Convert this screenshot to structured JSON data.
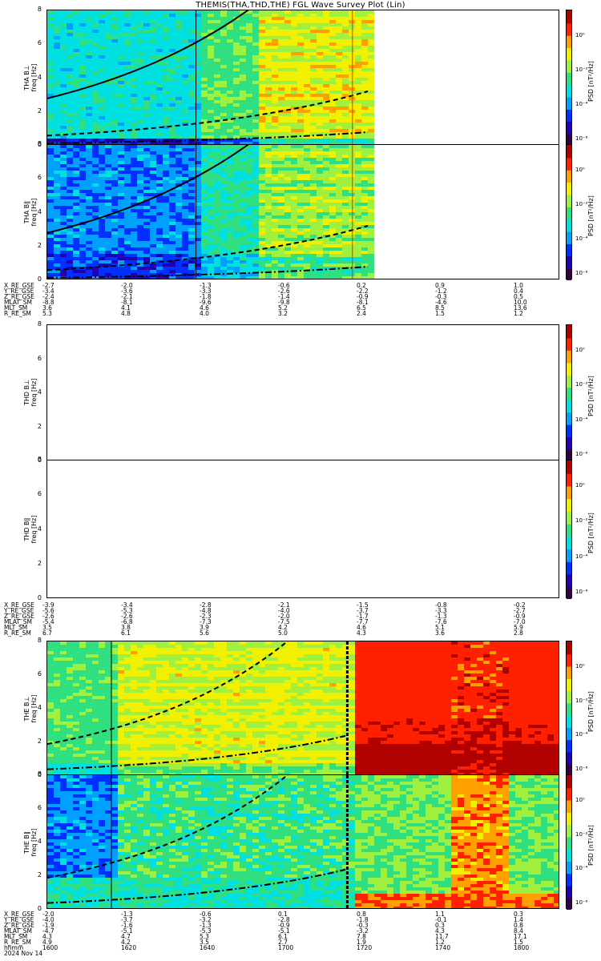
{
  "title": "THEMIS(THA,THD,THE) FGL Wave Survey Plot (Lin)",
  "colors": {
    "rainbow": [
      "#300040",
      "#2000b0",
      "#0030ff",
      "#00a0ff",
      "#00e0e0",
      "#30e080",
      "#a0f040",
      "#f0f000",
      "#ffa000",
      "#ff2000",
      "#b00000"
    ]
  },
  "panels": [
    {
      "id": "tha-bl",
      "label1": "THA B⊥",
      "label2": "freq [Hz]",
      "yticks": [
        "0",
        "2",
        "4",
        "6",
        "8"
      ],
      "cbar_label": "PSD [nT²/Hz]",
      "cbar_ticks": [
        "10⁰",
        "10⁻²",
        "10⁻⁴",
        "10⁻⁶"
      ]
    },
    {
      "id": "tha-bll",
      "label1": "THA B∥",
      "label2": "freq [Hz]",
      "yticks": [
        "0",
        "2",
        "4",
        "6",
        "8"
      ],
      "cbar_label": "PSD [nT²/Hz]",
      "cbar_ticks": [
        "10⁰",
        "10⁻²",
        "10⁻⁴",
        "10⁻⁶"
      ]
    },
    {
      "id": "thd-bl",
      "label1": "THD B⊥",
      "label2": "freq [Hz]",
      "yticks": [
        "0",
        "2",
        "4",
        "6",
        "8"
      ],
      "cbar_label": "PSD [nT²/Hz]",
      "cbar_ticks": [
        "10⁰",
        "10⁻²",
        "10⁻⁴",
        "10⁻⁶"
      ]
    },
    {
      "id": "thd-bll",
      "label1": "THD B∥",
      "label2": "freq [Hz]",
      "yticks": [
        "0",
        "2",
        "4",
        "6",
        "8"
      ],
      "cbar_label": "PSD [nT²/Hz]",
      "cbar_ticks": [
        "10⁰",
        "10⁻²",
        "10⁻⁴",
        "10⁻⁶"
      ]
    },
    {
      "id": "the-bl",
      "label1": "THE B⊥",
      "label2": "freq [Hz]",
      "yticks": [
        "0",
        "2",
        "4",
        "6",
        "8"
      ],
      "cbar_label": "PSD [nT²/Hz]",
      "cbar_ticks": [
        "10⁰",
        "10⁻²",
        "10⁻⁴",
        "10⁻⁶"
      ]
    },
    {
      "id": "the-bll",
      "label1": "THE B∥",
      "label2": "freq [Hz]",
      "yticks": [
        "0",
        "2",
        "4",
        "6",
        "8"
      ],
      "cbar_label": "PSD [nT²/Hz]",
      "cbar_ticks": [
        "10⁰",
        "10⁻²",
        "10⁻⁴",
        "10⁻⁶"
      ]
    }
  ],
  "ephem": [
    {
      "rows": [
        {
          "name": "X_RE_GSE",
          "vals": [
            "-2.7",
            "-2.0",
            "-1.3",
            "-0.6",
            "0.2",
            "0.9",
            "1.0"
          ]
        },
        {
          "name": "Y_RE_GSE",
          "vals": [
            "-3.4",
            "-3.6",
            "-3.3",
            "-2.6",
            "-2.2",
            "-1.2",
            "0.4"
          ]
        },
        {
          "name": "Z_RE_GSE",
          "vals": [
            "-2.4",
            "-2.1",
            "-1.8",
            "-1.4",
            "-0.9",
            "-0.3",
            "0.5"
          ]
        },
        {
          "name": "MLAT_SM",
          "vals": [
            "-8.8",
            "-8.1",
            "-9.6",
            "-9.8",
            "-8.1",
            "-4.6",
            "10.0"
          ]
        },
        {
          "name": "MLT_SM",
          "vals": [
            "3.6",
            "4.1",
            "4.6",
            "5.2",
            "6.5",
            "8.5",
            "13.6"
          ]
        },
        {
          "name": "R_RE_SM",
          "vals": [
            "5.3",
            "4.8",
            "4.0",
            "3.2",
            "2.4",
            "1.5",
            "1.2"
          ]
        }
      ]
    },
    {
      "rows": [
        {
          "name": "X_RE_GSE",
          "vals": [
            "-3.9",
            "-3.4",
            "-2.8",
            "-2.1",
            "-1.5",
            "-0.8",
            "-0.2"
          ]
        },
        {
          "name": "Y_RE_GSE",
          "vals": [
            "-5.6",
            "-5.3",
            "-4.8",
            "-4.0",
            "-3.7",
            "-3.3",
            "-2.7"
          ]
        },
        {
          "name": "Z_RE_GSE",
          "vals": [
            "-2.6",
            "-2.6",
            "-2.3",
            "-2.0",
            "-1.7",
            "-1.3",
            "-0.9"
          ]
        },
        {
          "name": "MLAT_SM",
          "vals": [
            "-5.4",
            "-6.8",
            "-7.3",
            "-7.5",
            "-7.7",
            "-7.6",
            "-7.0"
          ]
        },
        {
          "name": "MLT_SM",
          "vals": [
            "3.5",
            "3.8",
            "3.9",
            "4.2",
            "4.6",
            "5.1",
            "5.9"
          ]
        },
        {
          "name": "R_RE_SM",
          "vals": [
            "6.7",
            "6.1",
            "5.6",
            "5.0",
            "4.3",
            "3.6",
            "2.8"
          ]
        }
      ]
    },
    {
      "rows": [
        {
          "name": "X_RE_GSE",
          "vals": [
            "-2.0",
            "-1.3",
            "-0.6",
            "0.1",
            "0.8",
            "1.1",
            "0.3"
          ]
        },
        {
          "name": "Y_RE_GSE",
          "vals": [
            "-4.0",
            "-3.7",
            "-3.2",
            "-2.8",
            "-1.8",
            "-0.1",
            "1.4"
          ]
        },
        {
          "name": "Z_RE_GSE",
          "vals": [
            "-1.9",
            "-1.6",
            "-1.3",
            "-0.9",
            "-0.3",
            "0.3",
            "0.8"
          ]
        },
        {
          "name": "MLAT_SM",
          "vals": [
            "-4.7",
            "-5.1",
            "-5.3",
            "-5.1",
            "-3.2",
            "4.3",
            "8.4"
          ]
        },
        {
          "name": "MLT_SM",
          "vals": [
            "4.3",
            "4.7",
            "5.3",
            "6.1",
            "7.8",
            "11.7",
            "17.1"
          ]
        },
        {
          "name": "R_RE_SM",
          "vals": [
            "4.9",
            "4.2",
            "3.5",
            "2.7",
            "1.9",
            "1.2",
            "1.5"
          ]
        },
        {
          "name": "hhmm",
          "vals": [
            "1600",
            "1620",
            "1640",
            "1700",
            "1720",
            "1740",
            "1800"
          ]
        },
        {
          "name": "2024 Nov 14",
          "vals": []
        }
      ]
    }
  ],
  "chart_data": {
    "type": "heatmap",
    "title": "THEMIS(THA,THD,THE) FGL Wave Survey Plot (Lin)",
    "xlabel": "hhmm",
    "x_ticks": [
      "1600",
      "1620",
      "1640",
      "1700",
      "1720",
      "1740",
      "1800"
    ],
    "date": "2024 Nov 14",
    "ylim": [
      0,
      8
    ],
    "yticks": [
      0,
      2,
      4,
      6,
      8
    ],
    "colorbar": {
      "label": "PSD [nT²/Hz]",
      "scale": "log",
      "ticks": [
        "10⁰",
        "10⁻²",
        "10⁻⁴",
        "10⁻⁶"
      ]
    },
    "panels": [
      "THA B⊥",
      "THA B∥",
      "THD B⊥",
      "THD B∥",
      "THE B⊥",
      "THE B∥"
    ]
  }
}
